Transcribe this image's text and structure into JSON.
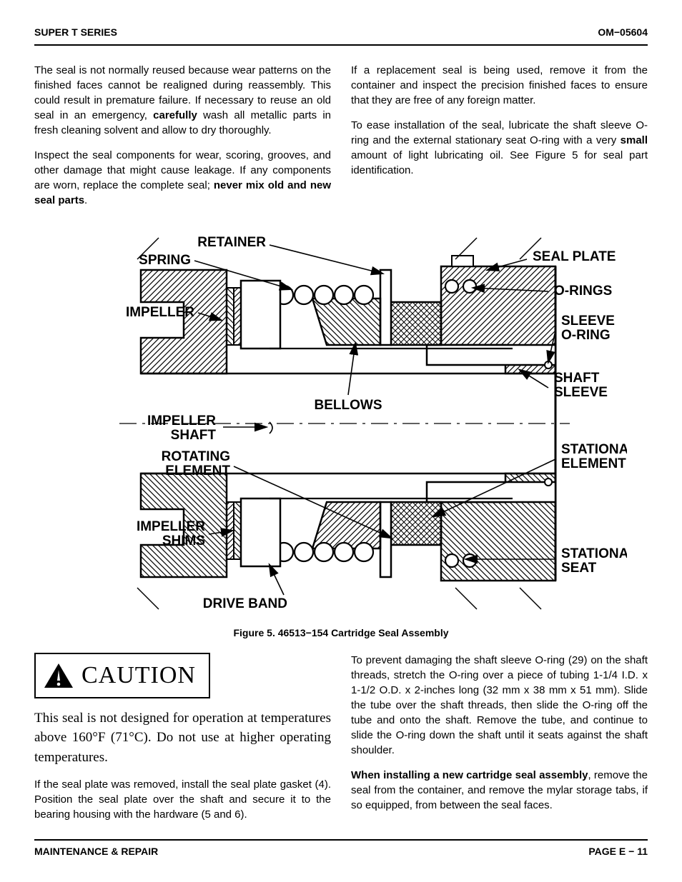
{
  "header": {
    "left": "SUPER T SERIES",
    "right": "OM−05604"
  },
  "top_columns": {
    "left": [
      {
        "segments": [
          {
            "t": "The seal is not normally reused because wear patterns on the finished faces cannot be realigned during reassembly. This could result in premature failure. If necessary to reuse an old seal in an emergency, "
          },
          {
            "t": "carefully",
            "b": true
          },
          {
            "t": " wash all metallic parts in fresh cleaning solvent and allow to dry thoroughly."
          }
        ]
      },
      {
        "segments": [
          {
            "t": "Inspect the seal components for wear, scoring, grooves, and other damage that might cause leakage. If any components are worn, replace the complete seal; "
          },
          {
            "t": "never mix old and new seal parts",
            "b": true
          },
          {
            "t": "."
          }
        ]
      }
    ],
    "right": [
      {
        "segments": [
          {
            "t": "If a replacement seal is being used, remove it from the container and inspect the precision finished faces to ensure that they are free of any foreign matter."
          }
        ]
      },
      {
        "segments": [
          {
            "t": "To ease installation of the seal, lubricate the shaft sleeve O-ring and the external stationary seat O-ring with a very "
          },
          {
            "t": "small",
            "b": true
          },
          {
            "t": " amount of light lubricating oil. See Figure 5 for seal part identification."
          }
        ]
      }
    ]
  },
  "figure": {
    "caption": "Figure 5.  46513−154 Cartridge Seal Assembly",
    "labels_left": [
      "RETAINER",
      "SPRING",
      "IMPELLER",
      "BELLOWS",
      "IMPELLER SHAFT",
      "ROTATING ELEMENT",
      "IMPELLER SHIMS",
      "DRIVE BAND"
    ],
    "labels_right": [
      "SEAL PLATE",
      "O-RINGS",
      "SLEEVE O-RING",
      "SHAFT SLEEVE",
      "STATIONARY ELEMENT",
      "STATIONARY SEAT"
    ]
  },
  "caution": {
    "label": "CAUTION",
    "text_parts": [
      "This seal is not designed for operation at temperatures above 160",
      "°",
      "F (71",
      "°",
      "C). Do not use at higher operating temperatures."
    ]
  },
  "bottom_columns": {
    "left": [
      {
        "segments": [
          {
            "t": "If the seal plate was removed, install the seal plate gasket (4). Position the seal plate over the shaft and secure it to the bearing housing with the hardware (5 and 6)."
          }
        ]
      }
    ],
    "right": [
      {
        "segments": [
          {
            "t": "To prevent damaging the shaft sleeve O-ring (29) on the shaft threads, stretch the O-ring over a piece of tubing 1-1/4 I.D. x 1-1/2 O.D. x 2-inches long (32 mm x 38 mm x 51 mm). Slide the tube over the shaft threads, then slide the O-ring off the tube and onto the shaft. Remove the tube, and continue to slide the O-ring down the shaft until it seats against the shaft shoulder."
          }
        ]
      },
      {
        "segments": [
          {
            "t": "When installing a new cartridge seal assembly",
            "b": true
          },
          {
            "t": ", remove the seal from the container, and remove the mylar storage tabs, if so equipped, from between the seal faces."
          }
        ]
      }
    ]
  },
  "footer": {
    "left": "MAINTENANCE & REPAIR",
    "right": "PAGE E − 11"
  },
  "diagram_style": {
    "stroke": "#000000",
    "stroke_thin": 1.2,
    "stroke_med": 2,
    "stroke_bold": 3,
    "hatch_spacing": 7
  }
}
